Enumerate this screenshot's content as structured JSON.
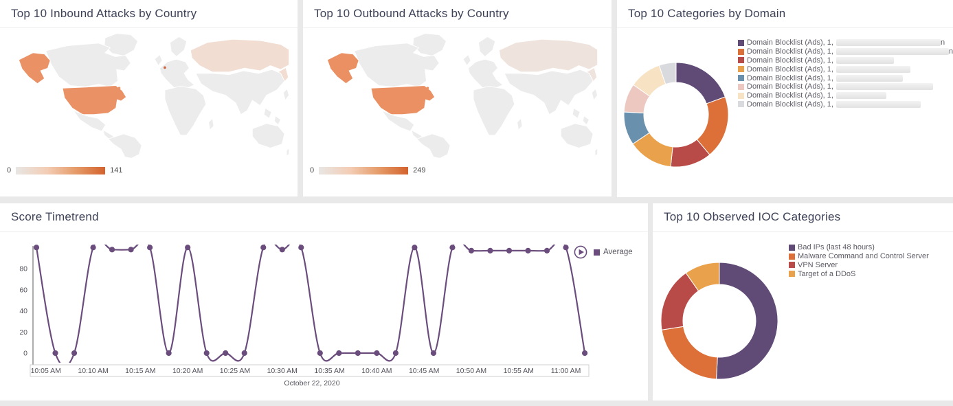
{
  "colors": {
    "accent_purple": "#604b77",
    "accent_orange": "#dc7038",
    "accent_red": "#b84a47",
    "accent_amber": "#e9a24b",
    "accent_blue": "#6991ad",
    "accent_pink": "#ecc8c1",
    "accent_peach": "#f7e2c4",
    "accent_gray": "#d9dade",
    "line_purple": "#6b4d7d",
    "title_text": "#3e4257",
    "body_text": "#5e5b65",
    "map_land": "#ececec",
    "map_usa_inbound": "#ea9166",
    "map_usa_outbound": "#eb9063",
    "map_russia_inbound": "#f1ddd2",
    "map_russia_outbound": "#efe4dd",
    "map_europe_dot": "#cb6a47",
    "scale_gradient_start": "#e8e6e4",
    "scale_gradient_end": "#d3622d"
  },
  "inbound_map": {
    "title": "Top 10 Inbound Attacks by Country",
    "scale_min": "0",
    "scale_max": "141"
  },
  "outbound_map": {
    "title": "Top 10 Outbound Attacks by Country",
    "scale_min": "0",
    "scale_max": "249"
  },
  "domain_panel": {
    "title": "Top 10 Categories by Domain",
    "legend": [
      {
        "label": "Domain Blocklist (Ads), 1,",
        "suffix": "n",
        "redacted_width": 152,
        "color_key": "accent_purple"
      },
      {
        "label": "Domain Blocklist (Ads), 1,",
        "suffix": "n",
        "redacted_width": 164,
        "color_key": "accent_orange"
      },
      {
        "label": "Domain Blocklist (Ads), 1,",
        "suffix": "",
        "redacted_width": 84,
        "color_key": "accent_red"
      },
      {
        "label": "Domain Blocklist (Ads), 1,",
        "suffix": "",
        "redacted_width": 108,
        "color_key": "accent_amber"
      },
      {
        "label": "Domain Blocklist (Ads), 1,",
        "suffix": "",
        "redacted_width": 97,
        "color_key": "accent_blue"
      },
      {
        "label": "Domain Blocklist (Ads), 1,",
        "suffix": "",
        "redacted_width": 141,
        "color_key": "accent_pink"
      },
      {
        "label": "Domain Blocklist (Ads), 1,",
        "suffix": "",
        "redacted_width": 73,
        "color_key": "accent_peach"
      },
      {
        "label": "Domain Blocklist (Ads), 1,",
        "suffix": "",
        "redacted_width": 123,
        "color_key": "accent_gray"
      }
    ]
  },
  "timetrend_panel": {
    "title": "Score Timetrend",
    "series_label": "Average",
    "date_label": "October 22, 2020"
  },
  "ioc_panel": {
    "title": "Top 10 Observed IOC Categories",
    "legend": [
      {
        "label": "Bad IPs (last 48 hours)",
        "color_key": "accent_purple"
      },
      {
        "label": "Malware Command and Control Server",
        "color_key": "accent_orange"
      },
      {
        "label": "VPN Server",
        "color_key": "accent_red"
      },
      {
        "label": "Target of a DDoS",
        "color_key": "accent_amber"
      }
    ]
  },
  "chart_data": [
    {
      "type": "map",
      "title": "Top 10 Inbound Attacks by Country",
      "scale": [
        0,
        141
      ],
      "highlights": [
        {
          "region": "United States (incl. Alaska)",
          "level": "high"
        },
        {
          "region": "Russia",
          "level": "low"
        },
        {
          "region": "Western Europe (small marker)",
          "level": "high"
        }
      ]
    },
    {
      "type": "map",
      "title": "Top 10 Outbound Attacks by Country",
      "scale": [
        0,
        249
      ],
      "highlights": [
        {
          "region": "United States (incl. Alaska)",
          "level": "high"
        },
        {
          "region": "Russia",
          "level": "very-low"
        }
      ]
    },
    {
      "type": "pie",
      "title": "Top 10 Categories by Domain",
      "legend_position": "right",
      "slices": [
        {
          "label": "Domain Blocklist (Ads), 1, [redacted]",
          "angle_deg": 70,
          "percent": 19.4,
          "color": "#604b77"
        },
        {
          "label": "Domain Blocklist (Ads), 1, [redacted]",
          "angle_deg": 70,
          "percent": 19.4,
          "color": "#dc7038"
        },
        {
          "label": "Domain Blocklist (Ads), 1, [redacted]",
          "angle_deg": 46,
          "percent": 12.8,
          "color": "#b84a47"
        },
        {
          "label": "Domain Blocklist (Ads), 1, [redacted]",
          "angle_deg": 50,
          "percent": 13.9,
          "color": "#e9a24b"
        },
        {
          "label": "Domain Blocklist (Ads), 1, [redacted]",
          "angle_deg": 37,
          "percent": 10.3,
          "color": "#6991ad"
        },
        {
          "label": "Domain Blocklist (Ads), 1, [redacted]",
          "angle_deg": 32,
          "percent": 8.9,
          "color": "#ecc8c1"
        },
        {
          "label": "Domain Blocklist (Ads), 1, [redacted]",
          "angle_deg": 36,
          "percent": 10.0,
          "color": "#f7e2c4"
        },
        {
          "label": "Domain Blocklist (Ads), 1, [redacted]",
          "angle_deg": 19,
          "percent": 5.3,
          "color": "#d9dade"
        }
      ]
    },
    {
      "type": "line",
      "title": "Score Timetrend",
      "x_axis_date": "October 22, 2020",
      "x_ticks": [
        "10:05 AM",
        "10:10 AM",
        "10:15 AM",
        "10:20 AM",
        "10:25 AM",
        "10:30 AM",
        "10:35 AM",
        "10:40 AM",
        "10:45 AM",
        "10:50 AM",
        "10:55 AM",
        "11:00 AM"
      ],
      "y_ticks": [
        0,
        20,
        40,
        60,
        80
      ],
      "ylim": [
        -10,
        104
      ],
      "series": [
        {
          "name": "Average",
          "x": [
            "10:04 AM",
            "10:06 AM",
            "10:08 AM",
            "10:10 AM",
            "10:12 AM",
            "10:14 AM",
            "10:16 AM",
            "10:18 AM",
            "10:20 AM",
            "10:22 AM",
            "10:24 AM",
            "10:26 AM",
            "10:28 AM",
            "10:30 AM",
            "10:32 AM",
            "10:34 AM",
            "10:36 AM",
            "10:38 AM",
            "10:40 AM",
            "10:42 AM",
            "10:44 AM",
            "10:46 AM",
            "10:48 AM",
            "10:50 AM",
            "10:52 AM",
            "10:54 AM",
            "10:56 AM",
            "10:58 AM",
            "11:00 AM",
            "11:02 AM"
          ],
          "y": [
            100,
            0,
            0,
            100,
            98,
            98,
            100,
            0,
            100,
            0,
            0,
            0,
            100,
            98,
            100,
            0,
            0,
            0,
            0,
            0,
            100,
            0,
            100,
            97,
            97,
            97,
            97,
            97,
            100,
            0
          ]
        }
      ]
    },
    {
      "type": "pie",
      "title": "Top 10 Observed IOC Categories",
      "legend_position": "right",
      "slices": [
        {
          "label": "Bad IPs (last 48 hours)",
          "angle_deg": 183,
          "percent": 50.8,
          "color": "#604b77"
        },
        {
          "label": "Malware Command and Control Server",
          "angle_deg": 78,
          "percent": 21.7,
          "color": "#dc7038"
        },
        {
          "label": "VPN Server",
          "angle_deg": 64,
          "percent": 17.8,
          "color": "#b84a47"
        },
        {
          "label": "Target of a DDoS",
          "angle_deg": 35,
          "percent": 9.7,
          "color": "#e9a24b"
        }
      ]
    }
  ]
}
